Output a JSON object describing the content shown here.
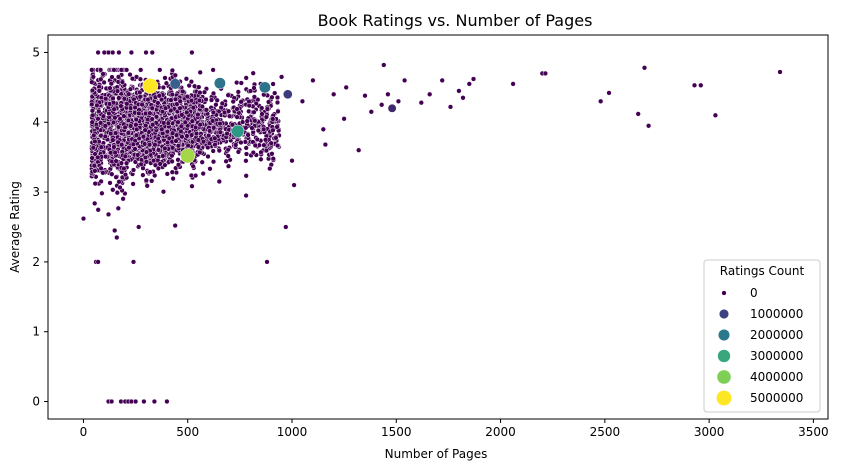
{
  "chart_data": {
    "type": "scatter",
    "title": "Book Ratings vs. Number of Pages",
    "xlabel": "Number of Pages",
    "ylabel": "Average Rating",
    "xlim": [
      -170,
      3570
    ],
    "ylim": [
      -0.25,
      5.25
    ],
    "xticks": [
      "0",
      "500",
      "1000",
      "1500",
      "2000",
      "2500",
      "3000",
      "3500"
    ],
    "yticks": [
      "0",
      "1",
      "2",
      "3",
      "4",
      "5"
    ],
    "grid": false,
    "legend": {
      "title": "Ratings Count",
      "placement": "lower right",
      "entries": [
        {
          "label": "0",
          "value": 0
        },
        {
          "label": "1000000",
          "value": 1000000
        },
        {
          "label": "2000000",
          "value": 2000000
        },
        {
          "label": "3000000",
          "value": 3000000
        },
        {
          "label": "4000000",
          "value": 4000000
        },
        {
          "label": "5000000",
          "value": 5000000
        }
      ]
    },
    "colormap": "viridis",
    "colors": {
      "low": "#440154",
      "mid_low": "#3b528b",
      "mid": "#21918c",
      "mid_high": "#5ec962",
      "high": "#fde725",
      "point_edge": "#ffffff"
    },
    "dense_cluster": {
      "description_count": 0,
      "x_range": [
        50,
        650
      ],
      "y_mean": 3.95,
      "y_sd": 0.28,
      "ratings_count": 0
    },
    "points": [
      {
        "x": 120,
        "y": 0,
        "c": 0
      },
      {
        "x": 135,
        "y": 0,
        "c": 0
      },
      {
        "x": 180,
        "y": 0,
        "c": 0
      },
      {
        "x": 200,
        "y": 0,
        "c": 0
      },
      {
        "x": 215,
        "y": 0,
        "c": 0
      },
      {
        "x": 230,
        "y": 0,
        "c": 0
      },
      {
        "x": 250,
        "y": 0,
        "c": 0
      },
      {
        "x": 290,
        "y": 0,
        "c": 0
      },
      {
        "x": 340,
        "y": 0,
        "c": 0
      },
      {
        "x": 400,
        "y": 0,
        "c": 0
      },
      {
        "x": 60,
        "y": 2,
        "c": 0
      },
      {
        "x": 70,
        "y": 2,
        "c": 0
      },
      {
        "x": 240,
        "y": 2,
        "c": 0
      },
      {
        "x": 880,
        "y": 2,
        "c": 0
      },
      {
        "x": 970,
        "y": 2.5,
        "c": 0
      },
      {
        "x": 440,
        "y": 2.52,
        "c": 0
      },
      {
        "x": 0,
        "y": 2.62,
        "c": 0
      },
      {
        "x": 160,
        "y": 2.35,
        "c": 0
      },
      {
        "x": 150,
        "y": 2.45,
        "c": 0
      },
      {
        "x": 120,
        "y": 2.68,
        "c": 0
      },
      {
        "x": 265,
        "y": 2.5,
        "c": 0
      },
      {
        "x": 780,
        "y": 2.95,
        "c": 0
      },
      {
        "x": 1010,
        "y": 3.1,
        "c": 0
      },
      {
        "x": 1000,
        "y": 3.45,
        "c": 0
      },
      {
        "x": 1320,
        "y": 3.6,
        "c": 0
      },
      {
        "x": 1160,
        "y": 3.68,
        "c": 0
      },
      {
        "x": 1380,
        "y": 4.15,
        "c": 0
      },
      {
        "x": 1430,
        "y": 4.25,
        "c": 0
      },
      {
        "x": 1460,
        "y": 4.4,
        "c": 0
      },
      {
        "x": 1480,
        "y": 4.2,
        "c": 0
      },
      {
        "x": 1510,
        "y": 4.3,
        "c": 0
      },
      {
        "x": 1540,
        "y": 4.6,
        "c": 0
      },
      {
        "x": 1620,
        "y": 4.28,
        "c": 0
      },
      {
        "x": 1660,
        "y": 4.4,
        "c": 0
      },
      {
        "x": 1720,
        "y": 4.6,
        "c": 0
      },
      {
        "x": 1760,
        "y": 4.22,
        "c": 0
      },
      {
        "x": 1800,
        "y": 4.45,
        "c": 0
      },
      {
        "x": 1820,
        "y": 4.35,
        "c": 0
      },
      {
        "x": 1850,
        "y": 4.55,
        "c": 0
      },
      {
        "x": 1870,
        "y": 4.62,
        "c": 0
      },
      {
        "x": 2060,
        "y": 4.55,
        "c": 0
      },
      {
        "x": 2200,
        "y": 4.7,
        "c": 0
      },
      {
        "x": 2215,
        "y": 4.7,
        "c": 0
      },
      {
        "x": 2480,
        "y": 4.3,
        "c": 0
      },
      {
        "x": 2520,
        "y": 4.42,
        "c": 0
      },
      {
        "x": 2660,
        "y": 4.12,
        "c": 0
      },
      {
        "x": 2690,
        "y": 4.78,
        "c": 0
      },
      {
        "x": 2710,
        "y": 3.95,
        "c": 0
      },
      {
        "x": 2930,
        "y": 4.53,
        "c": 0
      },
      {
        "x": 2960,
        "y": 4.53,
        "c": 0
      },
      {
        "x": 3030,
        "y": 4.1,
        "c": 0
      },
      {
        "x": 3340,
        "y": 4.72,
        "c": 0
      },
      {
        "x": 1440,
        "y": 4.82,
        "c": 0
      },
      {
        "x": 1260,
        "y": 4.5,
        "c": 0
      },
      {
        "x": 1200,
        "y": 4.4,
        "c": 0
      },
      {
        "x": 1100,
        "y": 4.6,
        "c": 0
      },
      {
        "x": 1050,
        "y": 4.3,
        "c": 0
      },
      {
        "x": 1150,
        "y": 3.9,
        "c": 0
      },
      {
        "x": 1250,
        "y": 4.05,
        "c": 0
      },
      {
        "x": 1350,
        "y": 4.38,
        "c": 0
      },
      {
        "x": 900,
        "y": 3.7,
        "c": 0
      },
      {
        "x": 950,
        "y": 4.65,
        "c": 0
      },
      {
        "x": 850,
        "y": 4.55,
        "c": 0
      },
      {
        "x": 100,
        "y": 5,
        "c": 0
      },
      {
        "x": 120,
        "y": 5,
        "c": 0
      },
      {
        "x": 140,
        "y": 5,
        "c": 0
      },
      {
        "x": 170,
        "y": 5,
        "c": 0
      },
      {
        "x": 230,
        "y": 5,
        "c": 0
      },
      {
        "x": 300,
        "y": 5,
        "c": 0
      },
      {
        "x": 330,
        "y": 5,
        "c": 0
      },
      {
        "x": 520,
        "y": 5,
        "c": 0
      },
      {
        "x": 70,
        "y": 5,
        "c": 0
      },
      {
        "x": 654,
        "y": 4.56,
        "c": 1900000
      },
      {
        "x": 870,
        "y": 4.5,
        "c": 1900000
      },
      {
        "x": 740,
        "y": 3.87,
        "c": 2700000
      },
      {
        "x": 440,
        "y": 4.55,
        "c": 1500000
      },
      {
        "x": 980,
        "y": 4.4,
        "c": 900000
      },
      {
        "x": 500,
        "y": 3.52,
        "c": 4300000
      },
      {
        "x": 320,
        "y": 4.52,
        "c": 5000000
      },
      {
        "x": 1480,
        "y": 4.2,
        "c": 600000
      }
    ]
  }
}
